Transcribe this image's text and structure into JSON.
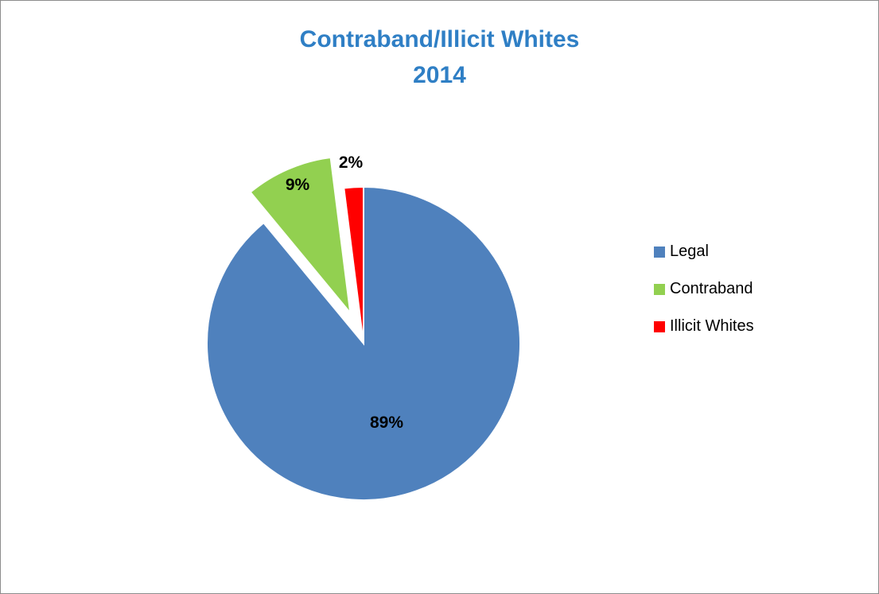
{
  "chart_data": {
    "type": "pie",
    "title": [
      "Contraband/Illicit Whites",
      "2014"
    ],
    "slices": [
      {
        "label": "Legal",
        "value": 89,
        "display": "89%",
        "color": "#4f81bd",
        "exploded": false
      },
      {
        "label": "Contraband",
        "value": 9,
        "display": "9%",
        "color": "#92d050",
        "exploded": true
      },
      {
        "label": "Illicit Whites",
        "value": 2,
        "display": "2%",
        "color": "#ff0000",
        "exploded": false
      }
    ],
    "legend_position": "right"
  }
}
